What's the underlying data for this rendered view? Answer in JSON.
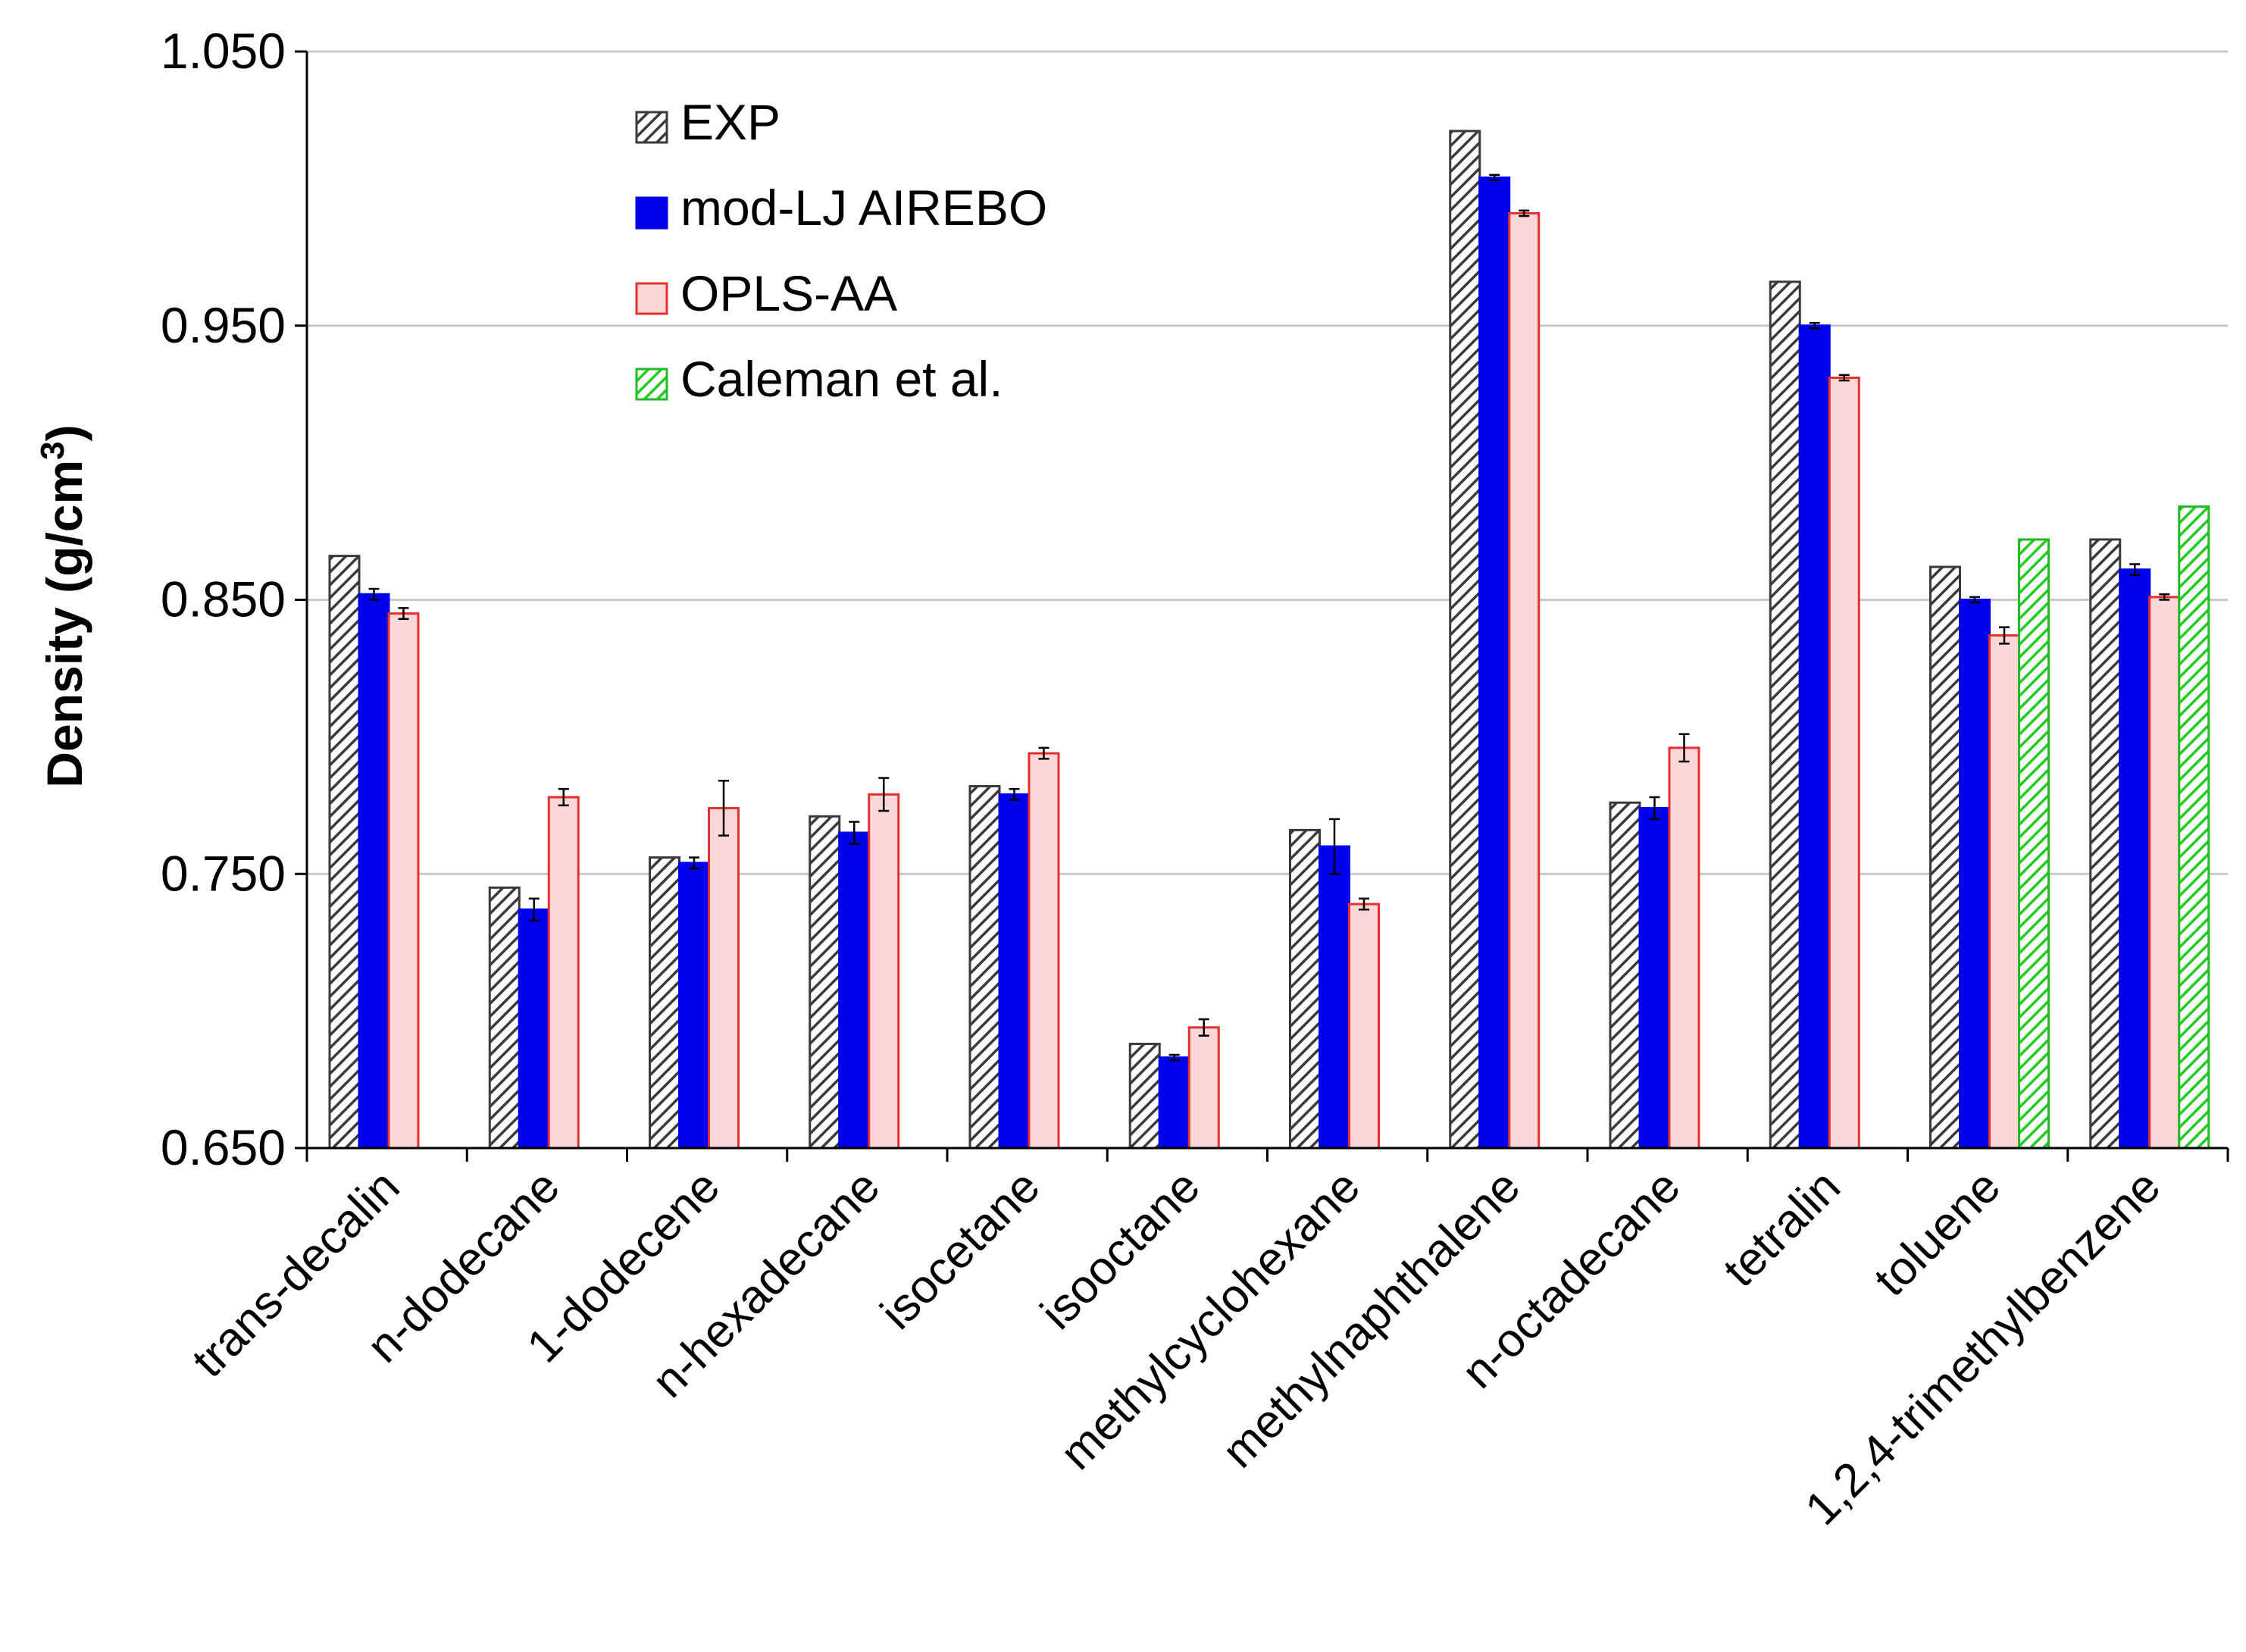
{
  "chart_data": {
    "type": "bar",
    "title": "",
    "xlabel": "",
    "ylabel": "Density (g/cm",
    "ylabel_superscript": "3",
    "ylabel_suffix": ")",
    "ylim": [
      0.65,
      1.05
    ],
    "yticks": [
      0.65,
      0.75,
      0.85,
      0.95,
      1.05
    ],
    "ytick_labels": [
      "0.650",
      "0.750",
      "0.850",
      "0.950",
      "1.050"
    ],
    "grid": true,
    "legend_position": "top-left",
    "categories": [
      "trans-decalin",
      "n-dodecane",
      "1-dodecene",
      "n-hexadecane",
      "isocetane",
      "isooctane",
      "methylcyclohexane",
      "methylnaphthalene",
      "n-octadecane",
      "tetralin",
      "toluene",
      "1,2,4-trimethylbenzene"
    ],
    "series": [
      {
        "name": "EXP",
        "style": "hatch-gray",
        "values": [
          0.866,
          0.745,
          0.756,
          0.771,
          0.782,
          0.688,
          0.766,
          1.021,
          0.776,
          0.966,
          0.862,
          0.872
        ],
        "errors": [
          null,
          null,
          null,
          null,
          null,
          null,
          null,
          null,
          null,
          null,
          null,
          null
        ]
      },
      {
        "name": "mod-LJ AIREBO",
        "style": "solid-blue",
        "values": [
          0.852,
          0.737,
          0.754,
          0.765,
          0.779,
          0.683,
          0.76,
          1.004,
          0.774,
          0.95,
          0.85,
          0.861
        ],
        "errors": [
          0.002,
          0.004,
          0.002,
          0.004,
          0.002,
          0.001,
          0.01,
          0.001,
          0.004,
          0.001,
          0.001,
          0.002
        ]
      },
      {
        "name": "OPLS-AA",
        "style": "light-pink",
        "values": [
          0.845,
          0.778,
          0.774,
          0.779,
          0.794,
          0.694,
          0.739,
          0.991,
          0.796,
          0.931,
          0.837,
          0.851
        ],
        "errors": [
          0.002,
          0.003,
          0.01,
          0.006,
          0.002,
          0.003,
          0.002,
          0.001,
          0.005,
          0.001,
          0.003,
          0.001
        ]
      },
      {
        "name": "Caleman et al.",
        "style": "hatch-green",
        "values": [
          null,
          null,
          null,
          null,
          null,
          null,
          null,
          null,
          null,
          null,
          0.872,
          0.884
        ],
        "errors": [
          null,
          null,
          null,
          null,
          null,
          null,
          null,
          null,
          null,
          null,
          null,
          null
        ]
      }
    ]
  },
  "colors": {
    "exp_stroke": "#3a3a3a",
    "exp_hatch": "#3a3a3a",
    "airebo_fill": "#0000ee",
    "opls_fill": "#fbd7d7",
    "opls_stroke": "#e53030",
    "caleman_stroke": "#22bb22",
    "caleman_hatch": "#22cc22",
    "grid": "#c8c8c8",
    "axis": "#000000"
  }
}
